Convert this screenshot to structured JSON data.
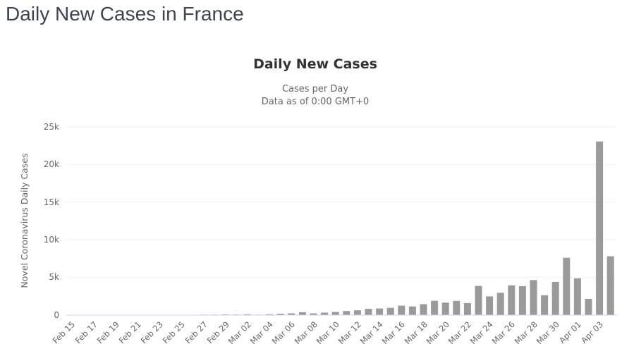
{
  "page": {
    "title": "Daily New Cases in France"
  },
  "chart": {
    "title": "Daily New Cases",
    "subtitle_line1": "Cases per Day",
    "subtitle_line2": "Data as of 0:00 GMT+0",
    "yaxis_title": "Novel Coronavirus Daily Cases",
    "colors": {
      "bar": "#9a9a9a",
      "gridline": "#f0f0f0",
      "axis_line": "#ccd6eb",
      "axis_label": "#666666",
      "chart_title": "#333333",
      "page_title": "#3c4452"
    }
  },
  "chart_data": {
    "type": "bar",
    "title": "Daily New Cases",
    "subtitle": "Cases per Day — Data as of 0:00 GMT+0",
    "xlabel": "",
    "ylabel": "Novel Coronavirus Daily Cases",
    "ylim": [
      0,
      25000
    ],
    "grid": true,
    "legend": false,
    "xtick_interval": 2,
    "ytick_labels": [
      {
        "value": 0,
        "label": "0"
      },
      {
        "value": 5000,
        "label": "5k"
      },
      {
        "value": 10000,
        "label": "10k"
      },
      {
        "value": 15000,
        "label": "15k"
      },
      {
        "value": 20000,
        "label": "20k"
      },
      {
        "value": 25000,
        "label": "25k"
      }
    ],
    "categories": [
      "Feb 15",
      "Feb 16",
      "Feb 17",
      "Feb 18",
      "Feb 19",
      "Feb 20",
      "Feb 21",
      "Feb 22",
      "Feb 23",
      "Feb 24",
      "Feb 25",
      "Feb 26",
      "Feb 27",
      "Feb 28",
      "Feb 29",
      "Mar 01",
      "Mar 02",
      "Mar 03",
      "Mar 04",
      "Mar 05",
      "Mar 06",
      "Mar 07",
      "Mar 08",
      "Mar 09",
      "Mar 10",
      "Mar 11",
      "Mar 12",
      "Mar 13",
      "Mar 14",
      "Mar 15",
      "Mar 16",
      "Mar 17",
      "Mar 18",
      "Mar 19",
      "Mar 20",
      "Mar 21",
      "Mar 22",
      "Mar 23",
      "Mar 24",
      "Mar 25",
      "Mar 26",
      "Mar 27",
      "Mar 28",
      "Mar 29",
      "Mar 30",
      "Mar 31",
      "Apr 01",
      "Apr 02",
      "Apr 03",
      "Apr 04"
    ],
    "values": [
      0,
      0,
      0,
      0,
      0,
      0,
      0,
      0,
      0,
      0,
      2,
      3,
      20,
      19,
      43,
      30,
      61,
      21,
      73,
      138,
      190,
      336,
      177,
      286,
      372,
      497,
      595,
      785,
      838,
      924,
      1210,
      1097,
      1404,
      1861,
      1617,
      1847,
      1559,
      3838,
      2444,
      2931,
      3922,
      3809,
      4611,
      2599,
      4376,
      7578,
      4861,
      2116,
      23060,
      7788
    ]
  }
}
